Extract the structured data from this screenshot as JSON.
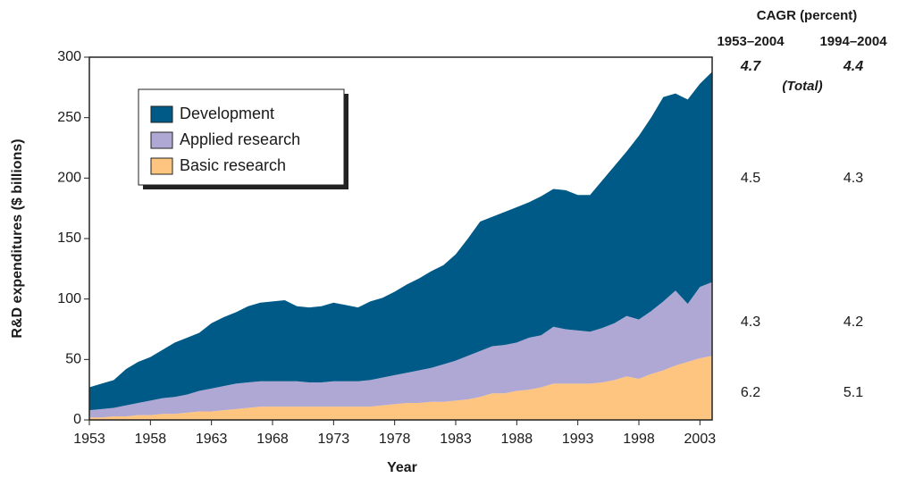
{
  "chart_data": {
    "type": "stacked_area",
    "x_label": "Year",
    "y_label": "R&D expenditures ($ billions)",
    "x": [
      1953,
      1954,
      1955,
      1956,
      1957,
      1958,
      1959,
      1960,
      1961,
      1962,
      1963,
      1964,
      1965,
      1966,
      1967,
      1968,
      1969,
      1970,
      1971,
      1972,
      1973,
      1974,
      1975,
      1976,
      1977,
      1978,
      1979,
      1980,
      1981,
      1982,
      1983,
      1984,
      1985,
      1986,
      1987,
      1988,
      1989,
      1990,
      1991,
      1992,
      1993,
      1994,
      1995,
      1996,
      1997,
      1998,
      1999,
      2000,
      2001,
      2002,
      2003,
      2004
    ],
    "series": [
      {
        "name": "Basic research",
        "color": "#fdc57f",
        "values": [
          2,
          2,
          3,
          3,
          4,
          4,
          5,
          5,
          6,
          7,
          7,
          8,
          9,
          10,
          11,
          11,
          11,
          11,
          11,
          11,
          11,
          11,
          11,
          11,
          12,
          13,
          14,
          14,
          15,
          15,
          16,
          17,
          19,
          22,
          22,
          24,
          25,
          27,
          30,
          30,
          30,
          30,
          31,
          33,
          36,
          34,
          38,
          41,
          45,
          48,
          51,
          53
        ]
      },
      {
        "name": "Applied research",
        "color": "#b0a8d4",
        "values": [
          6,
          7,
          7,
          9,
          10,
          12,
          13,
          14,
          15,
          17,
          19,
          20,
          21,
          21,
          21,
          21,
          21,
          21,
          20,
          20,
          21,
          21,
          21,
          22,
          23,
          24,
          25,
          27,
          28,
          31,
          33,
          36,
          38,
          39,
          40,
          40,
          43,
          43,
          47,
          45,
          44,
          43,
          45,
          47,
          50,
          49,
          52,
          57,
          62,
          48,
          59,
          61
        ]
      },
      {
        "name": "Development",
        "color": "#005a87",
        "values": [
          19,
          21,
          23,
          30,
          34,
          36,
          40,
          45,
          47,
          48,
          54,
          57,
          59,
          63,
          65,
          66,
          67,
          62,
          62,
          63,
          65,
          63,
          61,
          65,
          66,
          69,
          73,
          76,
          80,
          82,
          88,
          97,
          107,
          107,
          110,
          112,
          112,
          115,
          114,
          115,
          112,
          113,
          122,
          130,
          136,
          152,
          160,
          169,
          163,
          169,
          168,
          174
        ]
      }
    ],
    "legend_order": [
      2,
      1,
      0
    ],
    "xlim": [
      1953,
      2004
    ],
    "xticks": [
      1953,
      1958,
      1963,
      1968,
      1973,
      1978,
      1983,
      1988,
      1993,
      1998,
      2003
    ],
    "ylim": [
      0,
      300
    ],
    "yticks": [
      0,
      50,
      100,
      150,
      200,
      250,
      300
    ],
    "cagr": {
      "title": "CAGR (percent)",
      "columns": [
        "1953–2004",
        "1994–2004"
      ],
      "total_label": "(Total)",
      "rows": [
        [
          4.7,
          4.4
        ],
        [
          4.5,
          4.3
        ],
        [
          4.3,
          4.2
        ],
        [
          6.2,
          5.1
        ]
      ]
    }
  }
}
